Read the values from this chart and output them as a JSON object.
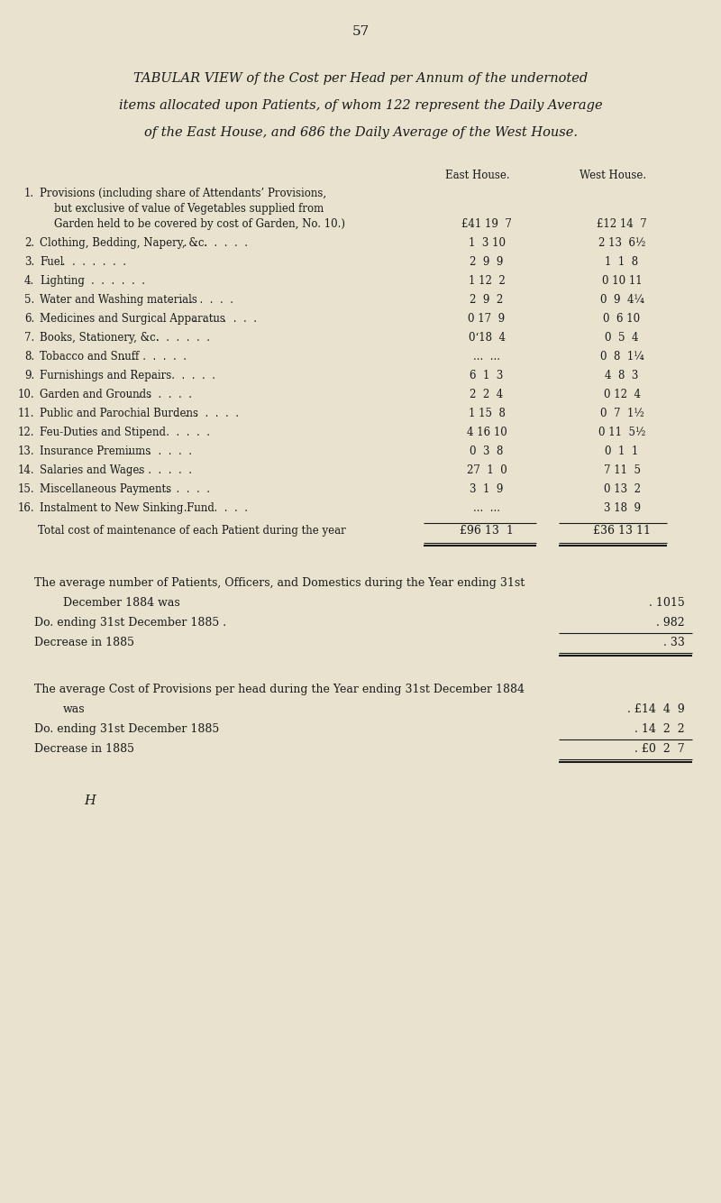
{
  "page_number": "57",
  "bg_color": "#e8e2ce",
  "text_color": "#1a1a1a",
  "title_lines": [
    "TABULAR VIEW of the Cost per Head per Annum of the undernoted",
    "items allocated upon Patients, of whom 122 represent the Daily Average",
    "of the East House, and 686 the Daily Average of the West House."
  ],
  "col_headers": [
    "East House.",
    "West House."
  ],
  "items": [
    {
      "num": "1.",
      "label_lines": [
        "Provisions (including share of Attendants’ Provisions,",
        "but exclusive of value of Vegetables supplied from",
        "Garden held to be covered by cost of Garden, No. 10.)"
      ],
      "east": "£41 19  7",
      "west": "£12 14  7",
      "dots": false
    },
    {
      "num": "2.",
      "label_lines": [
        "Clothing, Bedding, Napery, &c."
      ],
      "east": "1  3 10",
      "west": "2 13  6½",
      "dots": true
    },
    {
      "num": "3.",
      "label_lines": [
        "Fuel"
      ],
      "east": "2  9  9",
      "west": "1  1  8",
      "dots": true
    },
    {
      "num": "4.",
      "label_lines": [
        "Lighting"
      ],
      "east": "1 12  2",
      "west": "0 10 11",
      "dots": true
    },
    {
      "num": "5.",
      "label_lines": [
        "Water and Washing materials"
      ],
      "east": "2  9  2",
      "west": "0  9  4¼",
      "dots": true
    },
    {
      "num": "6.",
      "label_lines": [
        "Medicines and Surgical Apparatus"
      ],
      "east": "0 17  9",
      "west": "0  6 10",
      "dots": true
    },
    {
      "num": "7.",
      "label_lines": [
        "Books, Stationery, &c."
      ],
      "east": "0‘18  4",
      "west": "0  5  4",
      "dots": true
    },
    {
      "num": "8.",
      "label_lines": [
        "Tobacco and Snuff"
      ],
      "east": "...  ...",
      "west": "0  8  1¼",
      "dots": true
    },
    {
      "num": "9.",
      "label_lines": [
        "Furnishings and Repairs"
      ],
      "east": "6  1  3",
      "west": "4  8  3",
      "dots": true
    },
    {
      "num": "10.",
      "label_lines": [
        "Garden and Grounds"
      ],
      "east": "2  2  4",
      "west": "0 12  4",
      "dots": true
    },
    {
      "num": "11.",
      "label_lines": [
        "Public and Parochial Burdens"
      ],
      "east": "1 15  8",
      "west": "0  7  1½",
      "dots": true
    },
    {
      "num": "12.",
      "label_lines": [
        "Feu-Duties and Stipend"
      ],
      "east": "4 16 10",
      "west": "0 11  5½",
      "dots": true
    },
    {
      "num": "13.",
      "label_lines": [
        "Insurance Premiums"
      ],
      "east": "0  3  8",
      "west": "0  1  1",
      "dots": true
    },
    {
      "num": "14.",
      "label_lines": [
        "Salaries and Wages"
      ],
      "east": "27  1  0",
      "west": "7 11  5",
      "dots": true
    },
    {
      "num": "15.",
      "label_lines": [
        "Miscellaneous Payments"
      ],
      "east": "3  1  9",
      "west": "0 13  2",
      "dots": true
    },
    {
      "num": "16.",
      "label_lines": [
        "Instalment to New Sinking Fund"
      ],
      "east": "...  ...",
      "west": "3 18  9",
      "dots": true
    }
  ],
  "total_label": "Total cost of maintenance of each Patient during the year",
  "total_east": "£96 13  1",
  "total_west": "£36 13 11",
  "footer_blocks": [
    {
      "intro": "The average number of Patients, Officers, and Domestics during the Year ending 31st",
      "lines": [
        [
          "December 1884 was",
          ". 1015",
          false
        ],
        [
          "Do. ending 31st December 1885 .",
          ". 982",
          true
        ],
        [
          "Decrease in 1885",
          ". 33",
          true
        ]
      ],
      "double_last": true
    },
    {
      "intro": "The average Cost of Provisions per head during the Year ending 31st December 1884",
      "lines": [
        [
          "was",
          ". £14  4  9",
          false
        ],
        [
          "Do. ending 31st December 1885",
          ". 14  2  2",
          true
        ],
        [
          "Decrease in 1885",
          ". £0  2  7",
          true
        ]
      ],
      "double_last": true
    }
  ],
  "footer_letter": "H"
}
